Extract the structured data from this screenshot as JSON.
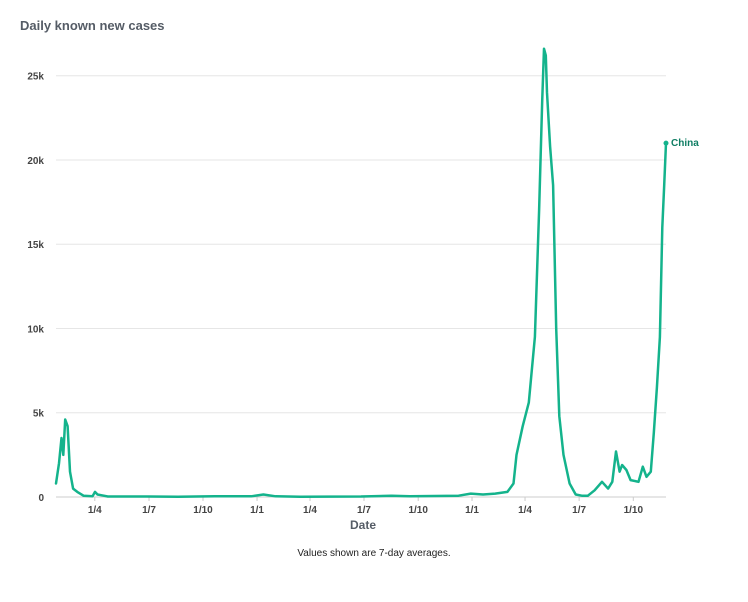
{
  "chart_data": {
    "type": "line",
    "title": "Daily known new cases",
    "xlabel": "Date",
    "note": "Values shown are 7-day averages.",
    "ylim": [
      0,
      27000
    ],
    "y_ticks": [
      0,
      5000,
      10000,
      15000,
      20000,
      25000
    ],
    "y_tick_labels": [
      "0",
      "5k",
      "10k",
      "15k",
      "20k",
      "25k"
    ],
    "x_ticks": [
      {
        "label": "1/4",
        "t": 0.0636
      },
      {
        "label": "1/7",
        "t": 0.1525
      },
      {
        "label": "1/10",
        "t": 0.241
      },
      {
        "label": "1/1",
        "t": 0.3296
      },
      {
        "label": "1/4",
        "t": 0.4164
      },
      {
        "label": "1/7",
        "t": 0.5049
      },
      {
        "label": "1/10",
        "t": 0.5938
      },
      {
        "label": "1/1",
        "t": 0.682
      },
      {
        "label": "1/4",
        "t": 0.7689
      },
      {
        "label": "1/7",
        "t": 0.8576
      },
      {
        "label": "1/10",
        "t": 0.9464
      }
    ],
    "grid": true,
    "color": "#14b38c",
    "label_color": "#0e7d63",
    "series": [
      {
        "name": "China",
        "points": [
          [
            0.0,
            800
          ],
          [
            0.005,
            2000
          ],
          [
            0.009,
            3500
          ],
          [
            0.012,
            2500
          ],
          [
            0.015,
            4600
          ],
          [
            0.019,
            4200
          ],
          [
            0.023,
            1500
          ],
          [
            0.028,
            500
          ],
          [
            0.035,
            300
          ],
          [
            0.045,
            80
          ],
          [
            0.06,
            50
          ],
          [
            0.064,
            300
          ],
          [
            0.068,
            150
          ],
          [
            0.075,
            100
          ],
          [
            0.085,
            30
          ],
          [
            0.15,
            30
          ],
          [
            0.2,
            20
          ],
          [
            0.26,
            40
          ],
          [
            0.32,
            40
          ],
          [
            0.34,
            150
          ],
          [
            0.36,
            40
          ],
          [
            0.4,
            20
          ],
          [
            0.5,
            30
          ],
          [
            0.55,
            80
          ],
          [
            0.58,
            40
          ],
          [
            0.66,
            80
          ],
          [
            0.68,
            200
          ],
          [
            0.7,
            150
          ],
          [
            0.72,
            200
          ],
          [
            0.74,
            300
          ],
          [
            0.75,
            800
          ],
          [
            0.755,
            2500
          ],
          [
            0.765,
            4200
          ],
          [
            0.775,
            5600
          ],
          [
            0.785,
            9500
          ],
          [
            0.792,
            17000
          ],
          [
            0.797,
            23500
          ],
          [
            0.8,
            26600
          ],
          [
            0.803,
            26200
          ],
          [
            0.805,
            24000
          ],
          [
            0.81,
            20800
          ],
          [
            0.815,
            18500
          ],
          [
            0.82,
            10000
          ],
          [
            0.825,
            4800
          ],
          [
            0.832,
            2500
          ],
          [
            0.842,
            800
          ],
          [
            0.852,
            150
          ],
          [
            0.862,
            80
          ],
          [
            0.872,
            80
          ],
          [
            0.883,
            400
          ],
          [
            0.895,
            900
          ],
          [
            0.905,
            500
          ],
          [
            0.912,
            900
          ],
          [
            0.918,
            2700
          ],
          [
            0.924,
            1500
          ],
          [
            0.928,
            1900
          ],
          [
            0.935,
            1600
          ],
          [
            0.942,
            1000
          ],
          [
            0.955,
            900
          ],
          [
            0.962,
            1800
          ],
          [
            0.968,
            1200
          ],
          [
            0.975,
            1500
          ],
          [
            0.98,
            3800
          ],
          [
            0.985,
            6500
          ],
          [
            0.99,
            9500
          ],
          [
            0.994,
            16000
          ],
          [
            0.997,
            18500
          ],
          [
            1.0,
            21000
          ]
        ]
      }
    ]
  }
}
